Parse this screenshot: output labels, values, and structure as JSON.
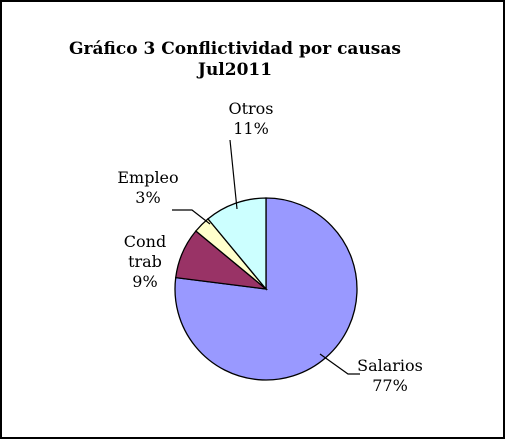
{
  "chart_data": {
    "type": "pie",
    "title": "Gráfico 3 Conflictividad por causas",
    "subtitle": "Jul2011",
    "slices": [
      {
        "name": "Salarios",
        "value": 77,
        "pct_label": "77%",
        "label_lines": [
          "Salarios"
        ],
        "color": "#9999FF"
      },
      {
        "name": "Cond trab",
        "value": 9,
        "pct_label": "9%",
        "label_lines": [
          "Cond",
          "trab"
        ],
        "color": "#993366"
      },
      {
        "name": "Empleo",
        "value": 3,
        "pct_label": "3%",
        "label_lines": [
          "Empleo"
        ],
        "color": "#FFFFCC"
      },
      {
        "name": "Otros",
        "value": 11,
        "pct_label": "11%",
        "label_lines": [
          "Otros"
        ],
        "color": "#CCFFFF"
      }
    ],
    "legend": "none",
    "start_angle": "top, clockwise"
  }
}
